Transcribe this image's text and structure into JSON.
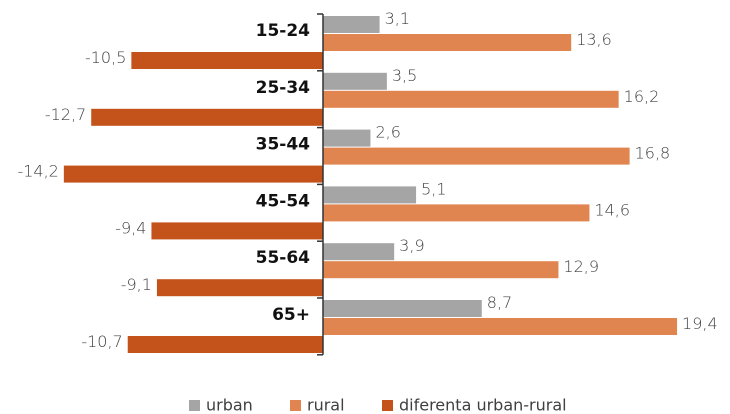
{
  "chart_data": {
    "type": "bar",
    "orientation": "horizontal",
    "categories": [
      "15-24",
      "25-34",
      "35-44",
      "45-54",
      "55-64",
      "65+"
    ],
    "series": [
      {
        "name": "urban",
        "color": "#a5a5a5",
        "values": [
          3.1,
          3.5,
          2.6,
          5.1,
          3.9,
          8.7
        ],
        "value_labels": [
          "3,1",
          "3,5",
          "2,6",
          "5,1",
          "3,9",
          "8,7"
        ]
      },
      {
        "name": "rural",
        "color": "#e0854f",
        "values": [
          13.6,
          16.2,
          16.8,
          14.6,
          12.9,
          19.4
        ],
        "value_labels": [
          "13,6",
          "16,2",
          "16,8",
          "14,6",
          "12,9",
          "19,4"
        ]
      },
      {
        "name": "diferenta urban-rural",
        "color": "#c4521b",
        "values": [
          -10.5,
          -12.7,
          -14.2,
          -9.4,
          -9.1,
          -10.7
        ],
        "value_labels": [
          "-10,5",
          "-12,7",
          "-14,2",
          "-9,4",
          "-9,1",
          "-10,7"
        ]
      }
    ],
    "legend": "bottom"
  }
}
